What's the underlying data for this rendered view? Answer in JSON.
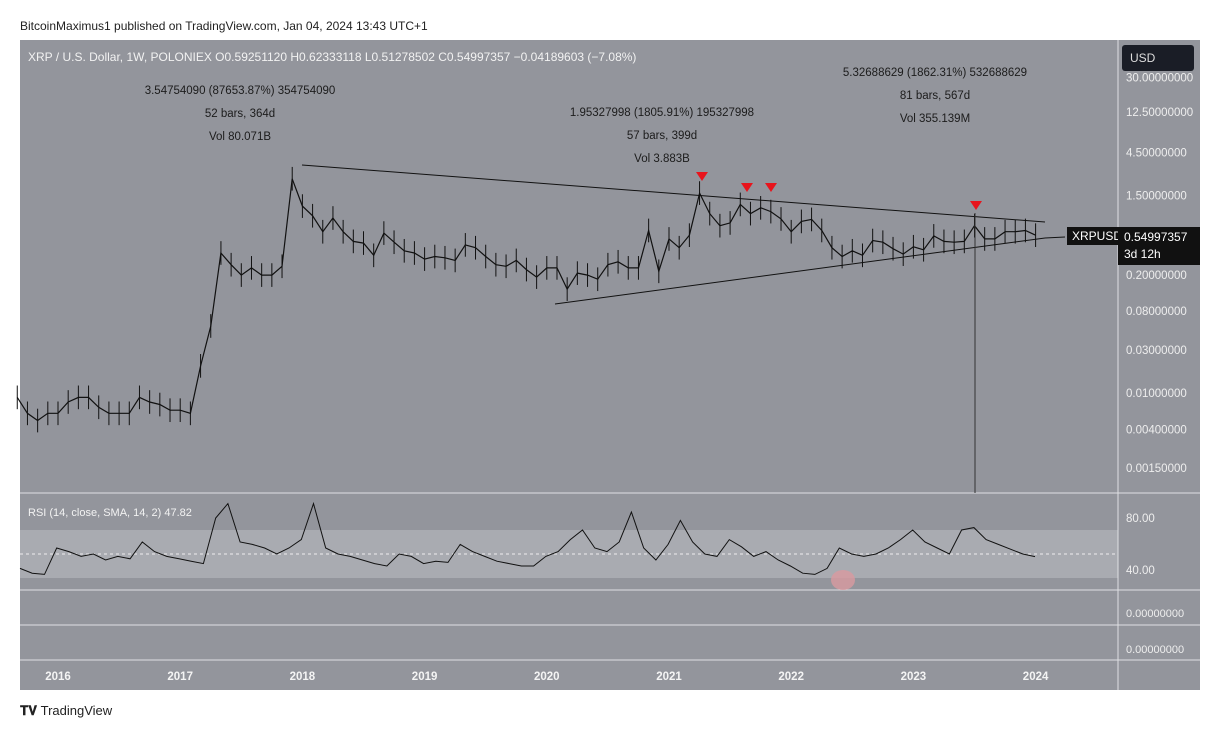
{
  "header": {
    "published": "BitcoinMaximus1 published on TradingView.com, Jan 04, 2024 13:43 UTC+1",
    "legend": "XRP / U.S. Dollar, 1W, POLONIEX  O0.59251120  H0.62333118  L0.51278502  C0.54997357  −0.04189603 (−7.08%)"
  },
  "annotations": [
    {
      "l1": "3.54754090 (87653.87%) 354754090",
      "l2": "52 bars, 364d",
      "l3": "Vol 80.071B"
    },
    {
      "l1": "1.95327998 (1805.91%) 195327998",
      "l2": "57 bars, 399d",
      "l3": "Vol 3.883B"
    },
    {
      "l1": "5.32688629 (1862.31%) 532688629",
      "l2": "81 bars, 567d",
      "l3": "Vol 355.139M"
    }
  ],
  "price_axis": {
    "currency": "USD",
    "ticks": [
      "30.00000000",
      "12.50000000",
      "4.50000000",
      "1.50000000",
      "0.20000000",
      "0.08000000",
      "0.03000000",
      "0.01000000",
      "0.00400000",
      "0.00150000"
    ],
    "symbol": "XRPUSD",
    "last": "0.54997357",
    "countdown": "3d 12h"
  },
  "rsi": {
    "label": "RSI (14, close, SMA, 14, 2)  47.82",
    "ticks": [
      "80.00",
      "40.00"
    ],
    "extra_ticks": [
      "0.00000000",
      "0.00000000"
    ]
  },
  "time_axis": [
    "2016",
    "2017",
    "2018",
    "2019",
    "2020",
    "2021",
    "2022",
    "2023",
    "2024"
  ],
  "footer": {
    "brand": "TradingView"
  },
  "colors": {
    "background": "#93959c",
    "marker": "#e8141c",
    "rsi_highlight": "#d99aa0"
  },
  "chart_data": {
    "type": "line",
    "scale": "log",
    "title": "XRP / U.S. Dollar, 1W, POLONIEX",
    "start": "2015-09",
    "interval": "monthly",
    "price": [
      0.009,
      0.006,
      0.005,
      0.006,
      0.006,
      0.008,
      0.009,
      0.009,
      0.007,
      0.006,
      0.006,
      0.006,
      0.009,
      0.008,
      0.0075,
      0.0065,
      0.0065,
      0.006,
      0.02,
      0.055,
      0.35,
      0.26,
      0.2,
      0.24,
      0.2,
      0.2,
      0.25,
      2.3,
      1.15,
      0.9,
      0.6,
      0.85,
      0.6,
      0.47,
      0.45,
      0.33,
      0.58,
      0.46,
      0.37,
      0.35,
      0.3,
      0.32,
      0.31,
      0.29,
      0.43,
      0.4,
      0.32,
      0.26,
      0.25,
      0.29,
      0.23,
      0.19,
      0.24,
      0.24,
      0.14,
      0.21,
      0.2,
      0.18,
      0.26,
      0.28,
      0.24,
      0.24,
      0.62,
      0.22,
      0.5,
      0.4,
      0.55,
      1.6,
      0.95,
      0.7,
      0.75,
      1.2,
      0.95,
      1.1,
      1.0,
      0.83,
      0.6,
      0.78,
      0.82,
      0.62,
      0.4,
      0.32,
      0.37,
      0.33,
      0.48,
      0.46,
      0.39,
      0.34,
      0.41,
      0.38,
      0.54,
      0.47,
      0.46,
      0.47,
      0.7,
      0.5,
      0.5,
      0.6,
      0.6,
      0.62,
      0.55
    ],
    "rsi_values": [
      38,
      34,
      33,
      55,
      52,
      48,
      50,
      45,
      48,
      46,
      60,
      52,
      48,
      46,
      44,
      42,
      80,
      92,
      60,
      58,
      55,
      50,
      55,
      62,
      92,
      55,
      50,
      48,
      45,
      42,
      40,
      50,
      48,
      42,
      44,
      43,
      58,
      52,
      48,
      44,
      42,
      40,
      40,
      48,
      52,
      62,
      70,
      55,
      52,
      60,
      85,
      55,
      45,
      58,
      78,
      60,
      50,
      48,
      62,
      56,
      48,
      52,
      45,
      40,
      34,
      33,
      38,
      55,
      50,
      48,
      50,
      55,
      62,
      70,
      60,
      55,
      50,
      70,
      72,
      62,
      58,
      54,
      50,
      47.82
    ],
    "highlights": [
      "2021-04 top",
      "2021-09 top",
      "2021-11 top",
      "2023-07 top"
    ],
    "trendlines": [
      {
        "from": [
          "2018-01",
          3.55
        ],
        "to": [
          "2024-02",
          0.85
        ]
      },
      {
        "from": [
          "2020-03",
          0.11
        ],
        "to": [
          "2024-02",
          0.5
        ]
      }
    ]
  }
}
